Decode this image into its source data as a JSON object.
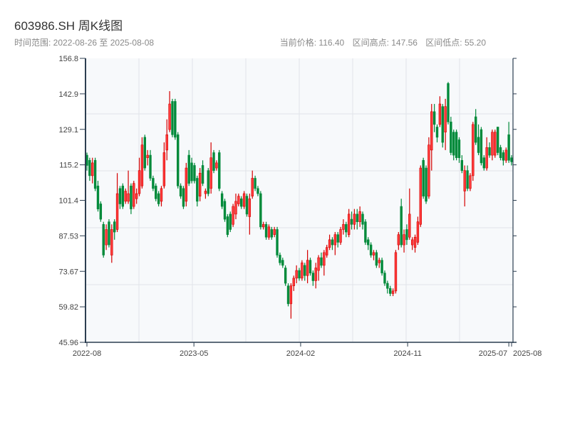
{
  "header": {
    "title": "603986.SH 周K线图",
    "range_label": "时间范围: 2022-08-26 至 2025-08-08",
    "current_price": "当前价格: 116.40",
    "range_high": "区间高点: 147.56",
    "range_low": "区间低点: 55.20"
  },
  "colors": {
    "up": "#d40000",
    "up_fill": "#ff3b3b",
    "down": "#008a3a",
    "axis": "#2c3e50",
    "plot_bg": "#f7f9fb",
    "grid": "#e1e4e8"
  },
  "chart_data": {
    "type": "candlestick",
    "title": "603986.SH 周K线图",
    "ylim": [
      45.96,
      156.8
    ],
    "yticks": [
      "156.8",
      "142.9",
      "129.1",
      "115.2",
      "101.4",
      "87.53",
      "73.67",
      "59.82",
      "45.96"
    ],
    "xticks": [
      {
        "label": "2022-08",
        "index": 0
      },
      {
        "label": "2023-05",
        "index": 38.8
      },
      {
        "label": "2024-02",
        "index": 77.5
      },
      {
        "label": "2024-11",
        "index": 116.3
      },
      {
        "label": "2025-07",
        "index": 153
      },
      {
        "label": "2025-08",
        "index": 154
      }
    ],
    "grid": true,
    "up_color": "red",
    "down_color": "green",
    "ohlc_format": [
      "open",
      "close",
      "low",
      "high"
    ],
    "ohlc": [
      [
        119,
        115,
        113,
        120
      ],
      [
        117,
        111,
        109,
        118
      ],
      [
        111,
        116,
        108,
        118
      ],
      [
        117,
        106,
        105,
        118
      ],
      [
        107,
        98,
        97,
        109
      ],
      [
        100,
        94,
        93,
        101
      ],
      [
        92,
        80,
        79,
        93
      ],
      [
        84,
        90,
        82,
        92
      ],
      [
        93,
        84,
        83,
        94
      ],
      [
        80,
        90,
        77,
        92
      ],
      [
        93,
        89,
        86,
        94
      ],
      [
        90,
        104,
        89,
        112
      ],
      [
        106,
        100,
        98,
        107
      ],
      [
        107,
        99,
        98,
        108
      ],
      [
        101,
        105,
        100,
        106
      ],
      [
        101,
        104,
        100,
        113
      ],
      [
        107,
        98,
        96,
        108
      ],
      [
        99,
        108,
        98,
        109
      ],
      [
        102,
        104,
        100,
        106
      ],
      [
        104,
        113,
        103,
        118
      ],
      [
        107,
        123,
        106,
        126
      ],
      [
        126,
        114,
        113,
        127
      ],
      [
        118,
        119,
        115,
        121
      ],
      [
        119,
        110,
        109,
        121
      ],
      [
        110,
        106,
        105,
        111
      ],
      [
        107,
        102,
        101,
        108
      ],
      [
        104,
        100,
        99,
        105
      ],
      [
        101,
        106,
        99,
        107
      ],
      [
        107,
        120,
        106,
        124
      ],
      [
        121,
        127,
        117,
        133
      ],
      [
        129,
        139,
        128,
        144
      ],
      [
        140,
        127,
        126,
        141
      ],
      [
        140,
        126,
        125,
        141
      ],
      [
        127,
        107,
        106,
        128
      ],
      [
        107,
        103,
        102,
        108
      ],
      [
        106,
        99,
        98,
        107
      ],
      [
        101,
        114,
        99,
        116
      ],
      [
        119,
        108,
        107,
        121
      ],
      [
        116,
        109,
        108,
        118
      ],
      [
        115,
        109,
        108,
        116
      ],
      [
        110,
        101,
        99,
        111
      ],
      [
        103,
        112,
        101,
        114
      ],
      [
        115,
        108,
        107,
        117
      ],
      [
        104,
        105,
        102,
        106
      ],
      [
        113,
        104,
        103,
        114
      ],
      [
        106,
        118,
        104,
        124
      ],
      [
        120,
        113,
        112,
        121
      ],
      [
        114,
        116,
        113,
        117
      ],
      [
        120,
        106,
        105,
        121
      ],
      [
        104,
        99,
        98,
        105
      ],
      [
        101,
        94,
        93,
        102
      ],
      [
        95,
        88,
        87,
        96
      ],
      [
        96,
        90,
        89,
        97
      ],
      [
        92,
        99,
        91,
        100
      ],
      [
        96,
        101,
        94,
        104
      ],
      [
        100,
        103,
        99,
        104
      ],
      [
        102,
        99,
        98,
        103
      ],
      [
        99,
        104,
        98,
        105
      ],
      [
        103,
        96,
        95,
        104
      ],
      [
        95,
        102,
        88,
        104
      ],
      [
        103,
        110,
        102,
        113
      ],
      [
        110,
        106,
        105,
        111
      ],
      [
        106,
        104,
        103,
        107
      ],
      [
        104,
        91,
        90,
        105
      ],
      [
        91,
        92,
        90,
        93
      ],
      [
        92,
        87,
        86,
        93
      ],
      [
        87,
        91,
        86,
        92
      ],
      [
        90,
        87,
        86,
        91
      ],
      [
        88,
        90,
        87,
        91
      ],
      [
        90,
        80,
        79,
        91
      ],
      [
        80,
        77,
        76,
        81
      ],
      [
        78,
        76,
        75,
        79
      ],
      [
        75,
        69,
        68,
        76
      ],
      [
        68,
        61,
        60,
        69
      ],
      [
        61,
        68,
        55.2,
        69
      ],
      [
        68,
        71,
        66,
        72
      ],
      [
        71,
        74,
        69,
        76
      ],
      [
        74,
        71,
        70,
        75
      ],
      [
        71,
        77,
        70,
        78
      ],
      [
        76,
        72,
        70,
        77
      ],
      [
        72,
        78,
        69,
        82
      ],
      [
        78,
        73,
        72,
        79
      ],
      [
        73,
        70,
        68,
        74
      ],
      [
        70,
        75,
        67,
        77
      ],
      [
        74,
        79,
        70,
        80
      ],
      [
        79,
        76,
        75,
        81
      ],
      [
        76,
        81,
        72,
        82
      ],
      [
        80,
        83,
        79,
        84
      ],
      [
        83,
        86,
        82,
        88
      ],
      [
        86,
        84,
        82,
        87
      ],
      [
        84,
        88,
        80,
        89
      ],
      [
        88,
        85,
        83,
        89
      ],
      [
        85,
        90,
        84,
        91
      ],
      [
        90,
        92,
        88,
        94
      ],
      [
        92,
        89,
        87,
        93
      ],
      [
        88,
        96,
        87,
        98
      ],
      [
        94,
        92,
        90,
        97
      ],
      [
        92,
        96,
        90,
        98
      ],
      [
        96,
        93,
        90,
        98
      ],
      [
        93,
        97,
        91,
        99
      ],
      [
        96,
        92,
        90,
        97
      ],
      [
        93,
        85,
        84,
        94
      ],
      [
        86,
        84,
        82,
        87
      ],
      [
        84,
        80,
        79,
        85
      ],
      [
        80,
        81,
        78,
        82
      ],
      [
        81,
        76,
        75,
        82
      ],
      [
        77,
        78,
        75,
        79
      ],
      [
        78,
        73,
        72,
        79
      ],
      [
        73,
        69,
        68,
        74
      ],
      [
        69,
        67,
        65,
        70
      ],
      [
        67,
        65,
        64,
        68
      ],
      [
        65,
        66,
        64,
        67
      ],
      [
        66,
        81,
        65,
        82
      ],
      [
        84,
        88,
        82,
        89
      ],
      [
        99,
        84,
        83,
        102
      ],
      [
        84,
        88,
        81,
        90
      ],
      [
        90,
        86,
        84,
        92
      ],
      [
        87,
        96,
        86,
        106
      ],
      [
        84,
        86,
        82,
        87
      ],
      [
        83,
        87,
        81,
        88
      ],
      [
        85,
        93,
        84,
        95
      ],
      [
        92,
        114,
        91,
        115
      ],
      [
        117,
        103,
        102,
        118
      ],
      [
        114,
        101,
        100,
        115
      ],
      [
        103,
        123,
        102,
        126
      ],
      [
        121,
        136,
        113,
        139
      ],
      [
        136,
        131,
        128,
        139
      ],
      [
        130,
        126,
        124,
        131
      ],
      [
        131,
        139,
        130,
        142
      ],
      [
        138,
        124,
        122,
        139
      ],
      [
        128,
        138,
        121,
        141
      ],
      [
        147,
        132,
        131,
        147.56
      ],
      [
        132,
        120,
        119,
        134
      ],
      [
        128,
        119,
        117,
        129
      ],
      [
        128,
        118,
        117,
        129
      ],
      [
        125,
        118,
        116,
        126
      ],
      [
        117,
        113,
        112,
        119
      ],
      [
        105,
        113,
        99,
        115
      ],
      [
        113,
        106,
        105,
        115
      ],
      [
        106,
        111,
        105,
        112
      ],
      [
        111,
        131,
        109,
        132
      ],
      [
        134,
        124,
        123,
        137
      ],
      [
        126,
        120,
        119,
        131
      ],
      [
        129,
        116,
        115,
        130
      ],
      [
        118,
        114,
        113,
        119
      ],
      [
        114,
        122,
        113,
        126
      ],
      [
        122,
        119,
        118,
        124
      ],
      [
        119,
        128,
        117,
        129
      ],
      [
        119,
        128,
        118,
        129
      ],
      [
        130,
        120,
        119,
        130
      ],
      [
        122,
        118,
        117,
        123
      ],
      [
        120,
        117,
        115,
        121
      ],
      [
        117,
        121,
        116,
        122
      ],
      [
        127,
        117,
        116,
        132
      ],
      [
        118,
        116.4,
        115,
        119
      ]
    ]
  }
}
